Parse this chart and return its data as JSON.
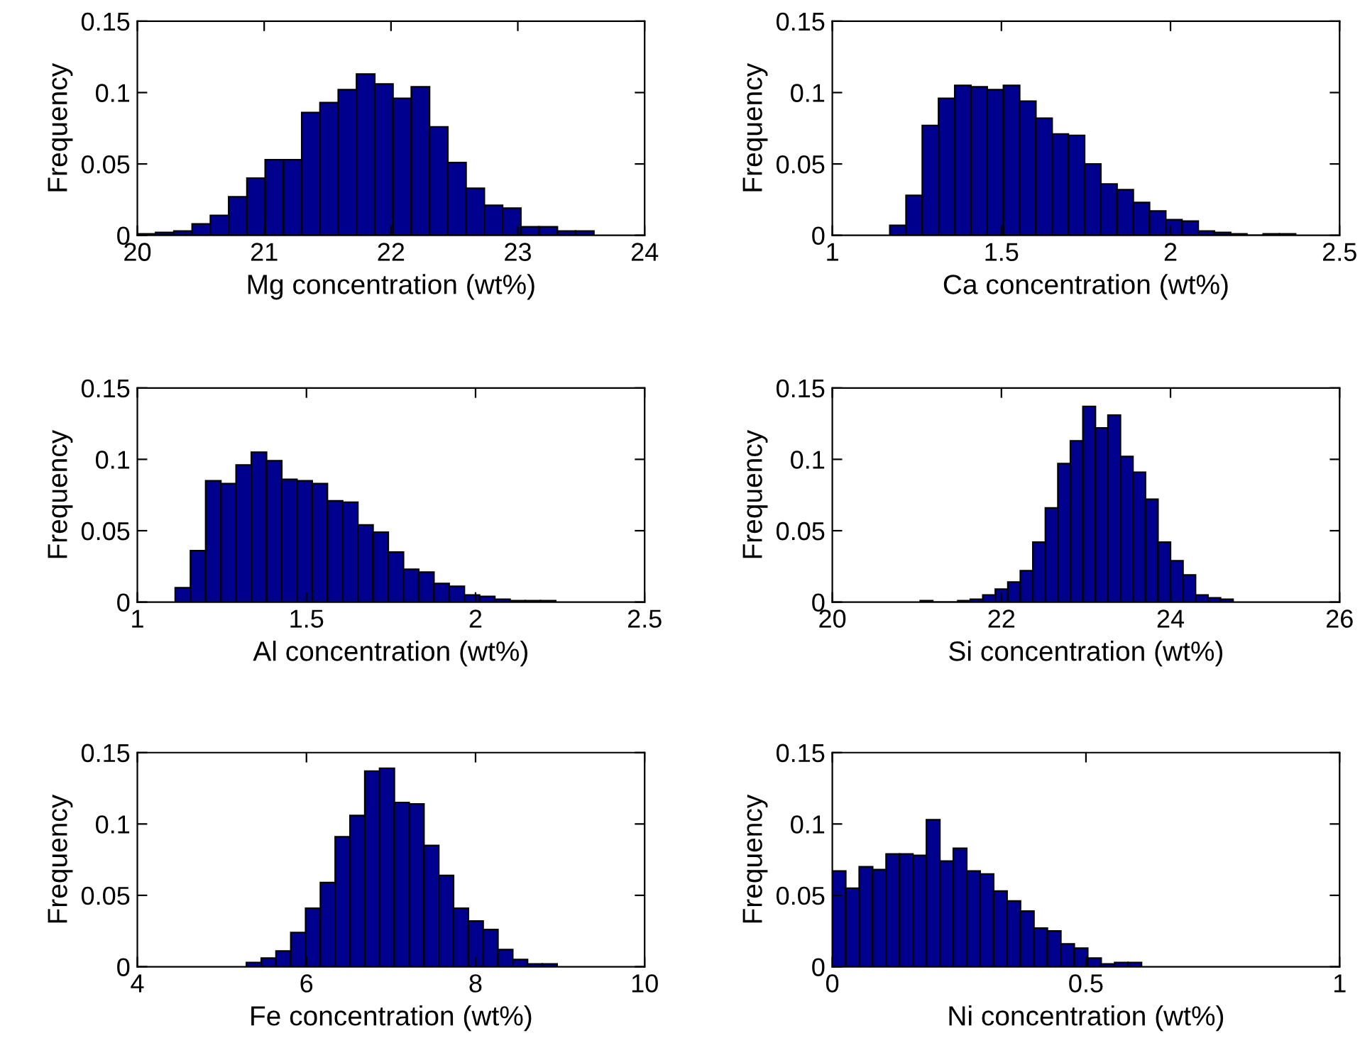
{
  "chart_data": [
    {
      "type": "histogram",
      "xlabel": "Mg concentration (wt%)",
      "ylabel": "Frequency",
      "color": "#00008f",
      "xlim": [
        20,
        24
      ],
      "xticks": [
        20,
        21,
        22,
        23,
        24
      ],
      "ylim": [
        0,
        0.15
      ],
      "yticks": [
        0,
        0.05,
        0.1,
        0.15
      ],
      "bins": [
        20,
        20.144,
        20.288,
        20.432,
        20.576,
        20.72,
        20.864,
        21.008,
        21.152,
        21.296,
        21.44,
        21.584,
        21.728,
        21.872,
        22.016,
        22.16,
        22.304,
        22.448,
        22.592,
        22.736,
        22.88,
        23.024,
        23.168,
        23.312,
        23.456,
        23.6
      ],
      "values": [
        0.001,
        0.002,
        0.003,
        0.008,
        0.014,
        0.027,
        0.04,
        0.053,
        0.053,
        0.086,
        0.093,
        0.102,
        0.113,
        0.106,
        0.096,
        0.104,
        0.076,
        0.051,
        0.033,
        0.021,
        0.019,
        0.006,
        0.006,
        0.003,
        0.003
      ]
    },
    {
      "type": "histogram",
      "xlabel": "Ca concentration (wt%)",
      "ylabel": "Frequency",
      "color": "#00008f",
      "xlim": [
        1,
        2.5
      ],
      "xticks": [
        1,
        1.5,
        2,
        2.5
      ],
      "ylim": [
        0,
        0.15
      ],
      "yticks": [
        0,
        0.05,
        0.1,
        0.15
      ],
      "bins": [
        1.17,
        1.218,
        1.266,
        1.314,
        1.362,
        1.41,
        1.458,
        1.506,
        1.554,
        1.602,
        1.65,
        1.698,
        1.746,
        1.794,
        1.842,
        1.89,
        1.938,
        1.986,
        2.034,
        2.082,
        2.13,
        2.178,
        2.226,
        2.274,
        2.322,
        2.37
      ],
      "values": [
        0.007,
        0.028,
        0.077,
        0.096,
        0.105,
        0.104,
        0.102,
        0.105,
        0.094,
        0.082,
        0.071,
        0.07,
        0.05,
        0.036,
        0.032,
        0.023,
        0.017,
        0.011,
        0.01,
        0.003,
        0.002,
        0.001,
        0,
        0.001,
        0.001
      ]
    },
    {
      "type": "histogram",
      "xlabel": "Al concentration (wt%)",
      "ylabel": "Frequency",
      "color": "#00008f",
      "xlim": [
        1,
        2.5
      ],
      "xticks": [
        1,
        1.5,
        2,
        2.5
      ],
      "ylim": [
        0,
        0.15
      ],
      "yticks": [
        0,
        0.05,
        0.1,
        0.15
      ],
      "bins": [
        1.112,
        1.157,
        1.202,
        1.247,
        1.292,
        1.337,
        1.382,
        1.427,
        1.472,
        1.517,
        1.562,
        1.607,
        1.652,
        1.697,
        1.742,
        1.787,
        1.832,
        1.877,
        1.922,
        1.967,
        2.012,
        2.057,
        2.102,
        2.147,
        2.192,
        2.237
      ],
      "values": [
        0.01,
        0.036,
        0.085,
        0.083,
        0.096,
        0.105,
        0.099,
        0.086,
        0.085,
        0.083,
        0.071,
        0.07,
        0.054,
        0.049,
        0.035,
        0.023,
        0.021,
        0.013,
        0.011,
        0.005,
        0.004,
        0.002,
        0.001,
        0.001,
        0.001
      ]
    },
    {
      "type": "histogram",
      "xlabel": "Si concentration (wt%)",
      "ylabel": "Frequency",
      "color": "#00008f",
      "xlim": [
        20,
        26
      ],
      "xticks": [
        20,
        22,
        24,
        26
      ],
      "ylim": [
        0,
        0.15
      ],
      "yticks": [
        0,
        0.05,
        0.1,
        0.15
      ],
      "bins": [
        21.04,
        21.188,
        21.336,
        21.484,
        21.632,
        21.78,
        21.928,
        22.076,
        22.224,
        22.372,
        22.52,
        22.668,
        22.816,
        22.964,
        23.112,
        23.26,
        23.408,
        23.556,
        23.704,
        23.852,
        24.0,
        24.148,
        24.296,
        24.444,
        24.592,
        24.74
      ],
      "values": [
        0.001,
        0,
        0,
        0.001,
        0.002,
        0.005,
        0.009,
        0.014,
        0.022,
        0.042,
        0.066,
        0.097,
        0.113,
        0.137,
        0.122,
        0.131,
        0.102,
        0.091,
        0.072,
        0.042,
        0.029,
        0.019,
        0.005,
        0.003,
        0.002
      ]
    },
    {
      "type": "histogram",
      "xlabel": "Fe concentration (wt%)",
      "ylabel": "Frequency",
      "color": "#00008f",
      "xlim": [
        4,
        10
      ],
      "xticks": [
        4,
        6,
        8,
        10
      ],
      "ylim": [
        0,
        0.15
      ],
      "yticks": [
        0,
        0.05,
        0.1,
        0.15
      ],
      "bins": [
        5.29,
        5.465,
        5.64,
        5.815,
        5.99,
        6.165,
        6.34,
        6.515,
        6.69,
        6.865,
        7.04,
        7.215,
        7.39,
        7.565,
        7.74,
        7.915,
        8.09,
        8.265,
        8.44,
        8.615,
        8.79,
        8.965
      ],
      "values": [
        0.003,
        0.006,
        0.011,
        0.024,
        0.041,
        0.059,
        0.091,
        0.106,
        0.137,
        0.139,
        0.115,
        0.114,
        0.085,
        0.064,
        0.041,
        0.032,
        0.026,
        0.012,
        0.005,
        0.002,
        0.002
      ]
    },
    {
      "type": "histogram",
      "xlabel": "Ni concentration (wt%)",
      "ylabel": "Frequency",
      "color": "#00008f",
      "xlim": [
        0,
        1
      ],
      "xticks": [
        0,
        0.5,
        1
      ],
      "ylim": [
        0,
        0.15
      ],
      "yticks": [
        0,
        0.05,
        0.1,
        0.15
      ],
      "bins": [
        0,
        0.0265,
        0.053,
        0.0795,
        0.106,
        0.1325,
        0.159,
        0.1855,
        0.212,
        0.2385,
        0.265,
        0.2915,
        0.318,
        0.3445,
        0.371,
        0.3975,
        0.424,
        0.4505,
        0.477,
        0.5035,
        0.53,
        0.5565,
        0.583,
        0.6095
      ],
      "values": [
        0.067,
        0.055,
        0.07,
        0.068,
        0.079,
        0.079,
        0.078,
        0.103,
        0.074,
        0.083,
        0.067,
        0.065,
        0.053,
        0.046,
        0.039,
        0.027,
        0.025,
        0.016,
        0.013,
        0.006,
        0.002,
        0.003,
        0.003
      ]
    }
  ]
}
